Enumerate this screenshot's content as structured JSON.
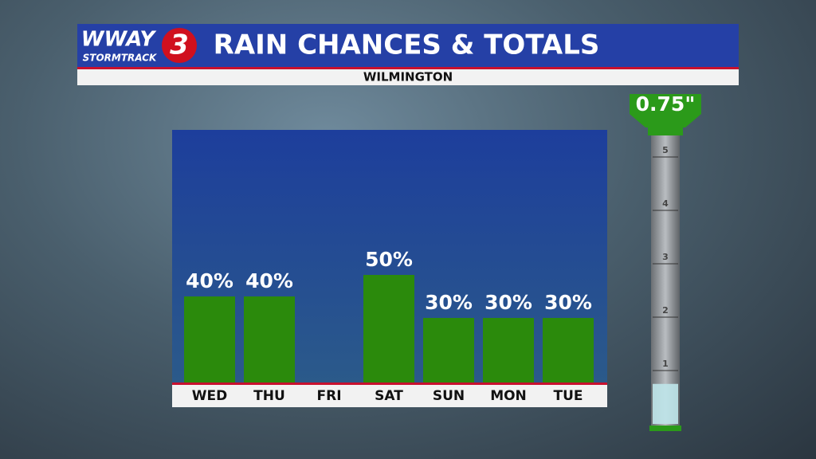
{
  "logo": {
    "name": "WWAY",
    "number": "3",
    "brand": "STORMTRACK"
  },
  "chart_data": {
    "type": "bar",
    "title": "RAIN CHANCES & TOTALS",
    "subtitle": "WILMINGTON",
    "categories": [
      "WED",
      "THU",
      "FRI",
      "SAT",
      "SUN",
      "MON",
      "TUE"
    ],
    "values": [
      40,
      40,
      0,
      50,
      30,
      30,
      30
    ],
    "value_labels": [
      "40%",
      "40%",
      null,
      "50%",
      "30%",
      "30%",
      "30%"
    ],
    "color": "#2b8a0c"
  },
  "gauge": {
    "total": 0.75,
    "total_label": "0.75\"",
    "ticks": [
      1,
      2,
      3,
      4,
      5
    ]
  }
}
